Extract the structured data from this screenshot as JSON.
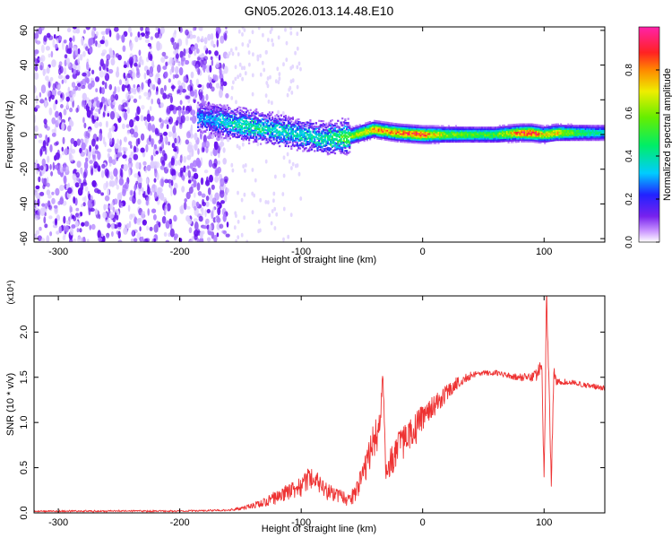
{
  "title": "GN05.2026.013.14.48.E10",
  "colors": {
    "snr_line": "#ee3333",
    "spec_cloud": "#7722ee",
    "spec_core": "#ff3344",
    "background": "#ffffff",
    "axes": "#000000"
  },
  "chart_data": [
    {
      "type": "heatmap",
      "xlabel": "Height of straight line (km)",
      "ylabel": "Frequency (Hz)",
      "xlim": [
        -320,
        150
      ],
      "ylim": [
        -62,
        62
      ],
      "xticks": [
        -300,
        -200,
        -100,
        0,
        100
      ],
      "yticks": [
        -60,
        -40,
        -20,
        0,
        20,
        40,
        60
      ],
      "colorbar": {
        "label": "Normalized spectral amplitude",
        "range": [
          0.0,
          1.0
        ],
        "ticks": [
          0.0,
          0.2,
          0.4,
          0.6,
          0.8
        ],
        "colormap": "rainbow (white-violet-blue-cyan-green-yellow-red-magenta)"
      },
      "ridge": {
        "description": "dominant spectral ridge near 0 Hz",
        "x": [
          -180,
          -160,
          -140,
          -120,
          -100,
          -80,
          -60,
          -40,
          -20,
          0,
          20,
          40,
          60,
          80,
          90,
          100,
          110,
          130,
          150
        ],
        "frequency": [
          10,
          7,
          5,
          3,
          0,
          -2,
          -1,
          3,
          1,
          0,
          0,
          0,
          0,
          1,
          1,
          0,
          1,
          1,
          1
        ],
        "amplitude": [
          0.3,
          0.4,
          0.45,
          0.4,
          0.4,
          0.45,
          0.6,
          0.8,
          0.85,
          0.9,
          0.6,
          0.55,
          0.55,
          0.85,
          0.95,
          0.7,
          0.75,
          0.5,
          0.4
        ]
      },
      "noise_region": {
        "x_range": [
          -320,
          -160
        ],
        "amplitude": 0.1
      }
    },
    {
      "type": "line",
      "xlabel": "Height of straight line (km)",
      "ylabel": "SNR (10 * v/v)",
      "y_multiplier": "(x10⁴)",
      "xlim": [
        -320,
        150
      ],
      "ylim": [
        0,
        2.4
      ],
      "xticks": [
        -300,
        -200,
        -100,
        0,
        100
      ],
      "yticks": [
        0.0,
        0.5,
        1.0,
        1.5,
        2.0
      ],
      "series": [
        {
          "x": [
            -320,
            -250,
            -200,
            -160,
            -150,
            -140,
            -130,
            -120,
            -110,
            -100,
            -95,
            -90,
            -85,
            -80,
            -70,
            -60,
            -55,
            -50,
            -45,
            -40,
            -35,
            -33,
            -30,
            -25,
            -20,
            -15,
            -10,
            -5,
            0,
            5,
            10,
            15,
            20,
            30,
            40,
            50,
            60,
            70,
            80,
            90,
            95,
            98,
            100,
            102,
            104,
            106,
            108,
            110,
            120,
            130,
            140,
            150
          ],
          "y": [
            0.02,
            0.02,
            0.02,
            0.03,
            0.05,
            0.08,
            0.12,
            0.18,
            0.22,
            0.3,
            0.35,
            0.42,
            0.32,
            0.25,
            0.18,
            0.15,
            0.22,
            0.38,
            0.6,
            0.8,
            0.95,
            1.55,
            0.4,
            0.6,
            0.7,
            0.8,
            0.85,
            0.95,
            1.05,
            1.12,
            1.2,
            1.25,
            1.35,
            1.45,
            1.52,
            1.55,
            1.55,
            1.52,
            1.5,
            1.5,
            1.55,
            1.7,
            0.25,
            2.35,
            1.4,
            0.35,
            1.55,
            1.45,
            1.45,
            1.42,
            1.4,
            1.38
          ],
          "noise_amplitude": [
            0.01,
            0.01,
            0.01,
            0.01,
            0.02,
            0.03,
            0.05,
            0.08,
            0.1,
            0.12,
            0.14,
            0.12,
            0.1,
            0.1,
            0.08,
            0.08,
            0.1,
            0.14,
            0.18,
            0.2,
            0.2,
            0.1,
            0.15,
            0.18,
            0.2,
            0.2,
            0.18,
            0.18,
            0.15,
            0.12,
            0.12,
            0.1,
            0.1,
            0.06,
            0.04,
            0.03,
            0.03,
            0.03,
            0.04,
            0.05,
            0.08,
            0.1,
            0.2,
            0.15,
            0.15,
            0.1,
            0.08,
            0.04,
            0.03,
            0.03,
            0.03,
            0.03
          ]
        }
      ]
    }
  ]
}
